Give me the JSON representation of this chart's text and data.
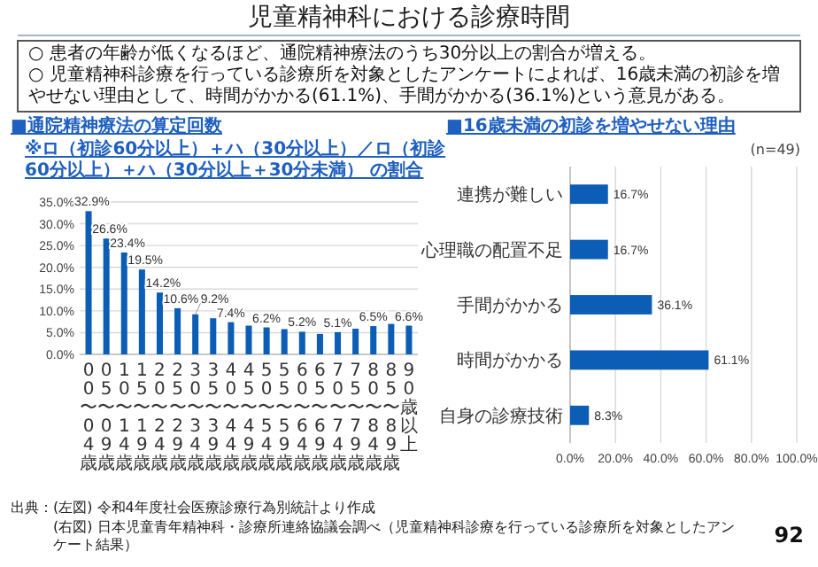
{
  "chart_data": [
    {
      "type": "other",
      "title": "児童精神科における診療時間",
      "annotations": [
        "○ 患者の年齢が低くなるほど、通院精神療法のうち30分以上の割合が増える。",
        "○ 児童精神科診療を行っている診療所を対象としたアンケートによれば、16歳未満の初診を増やせない理由として、時間がかかる(61.1%)、手間がかかる(36.1%)という意見がある。",
        "出典：(左図) 令和4年度社会医療診療行為別統計より作成",
        "(右図) 日本児童青年精神科・診療所連絡協議会調べ（児童精神科診療を行っている診療所を対象としたアンケート結果）",
        "92"
      ]
    },
    {
      "type": "bar",
      "title": "■通院精神療法の算定回数",
      "subtitle": "※ロ（初診60分以上）＋ハ（30分以上）／ロ（初診60分以上）＋ハ（30分以上＋30分未満） の割合",
      "categories": [
        "00〜04歳",
        "05〜09歳",
        "10〜14歳",
        "15〜19歳",
        "20〜24歳",
        "25〜29歳",
        "30〜34歳",
        "35〜39歳",
        "40〜44歳",
        "45〜49歳",
        "50〜54歳",
        "55〜59歳",
        "60〜64歳",
        "65〜69歳",
        "70〜74歳",
        "75〜79歳",
        "80〜84歳",
        "85〜89歳",
        "90歳以上"
      ],
      "values": [
        32.9,
        26.6,
        23.4,
        19.5,
        14.2,
        10.6,
        9.2,
        8.3,
        7.4,
        6.6,
        6.2,
        5.8,
        5.2,
        4.7,
        5.1,
        5.9,
        6.5,
        7.0,
        6.6
      ],
      "value_labels": [
        "32.9%",
        "26.6%",
        "23.4%",
        "19.5%",
        "14.2%",
        "10.6%",
        "9.2%",
        null,
        "7.4%",
        null,
        "6.2%",
        null,
        "5.2%",
        null,
        "5.1%",
        null,
        "6.5%",
        null,
        "6.6%"
      ],
      "color": "#0b5db5",
      "ylim": [
        0,
        35
      ],
      "yticks": [
        {
          "value": 0,
          "label": "0.0%"
        },
        {
          "value": 5,
          "label": "5.0%"
        },
        {
          "value": 10,
          "label": "10.0%"
        },
        {
          "value": 15,
          "label": "15.0%"
        },
        {
          "value": 20,
          "label": "20.0%"
        },
        {
          "value": 25,
          "label": "25.0%"
        },
        {
          "value": 30,
          "label": "30.0%"
        },
        {
          "value": 35,
          "label": "35.0%"
        }
      ],
      "grid": "y"
    },
    {
      "type": "bar",
      "orientation": "horizontal",
      "title": "■16歳未満の初診を増やせない理由",
      "annotations": [
        "(n=49)"
      ],
      "categories": [
        "連携が難しい",
        "心理職の配置不足",
        "手間がかかる",
        "時間がかかる",
        "自身の診療技術"
      ],
      "values": [
        16.7,
        16.7,
        36.1,
        61.1,
        8.3
      ],
      "value_labels": [
        "16.7%",
        "16.7%",
        "36.1%",
        "61.1%",
        "8.3%"
      ],
      "color": "#0b5db5",
      "xlim": [
        0,
        100
      ],
      "xticks": [
        {
          "value": 0,
          "label": "0.0%"
        },
        {
          "value": 20,
          "label": "20.0%"
        },
        {
          "value": 40,
          "label": "40.0%"
        },
        {
          "value": 60,
          "label": "60.0%"
        },
        {
          "value": 80,
          "label": "80.0%"
        },
        {
          "value": 100,
          "label": "100.0%"
        }
      ],
      "grid": "x"
    }
  ]
}
